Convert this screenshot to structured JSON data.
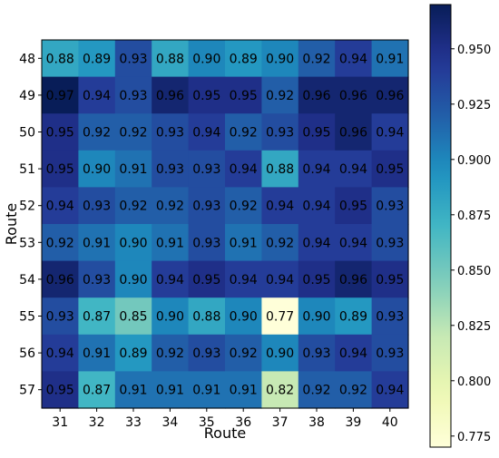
{
  "chart_data": {
    "type": "heatmap",
    "title": "",
    "xlabel": "Route",
    "ylabel": "Route",
    "x_categories": [
      "31",
      "32",
      "33",
      "34",
      "35",
      "36",
      "37",
      "38",
      "39",
      "40"
    ],
    "y_categories": [
      "48",
      "49",
      "50",
      "51",
      "52",
      "53",
      "54",
      "55",
      "56",
      "57"
    ],
    "values": [
      [
        0.88,
        0.89,
        0.93,
        0.88,
        0.9,
        0.89,
        0.9,
        0.92,
        0.94,
        0.91
      ],
      [
        0.97,
        0.94,
        0.93,
        0.96,
        0.95,
        0.95,
        0.92,
        0.96,
        0.96,
        0.96
      ],
      [
        0.95,
        0.92,
        0.92,
        0.93,
        0.94,
        0.92,
        0.93,
        0.95,
        0.96,
        0.94
      ],
      [
        0.95,
        0.9,
        0.91,
        0.93,
        0.93,
        0.94,
        0.88,
        0.94,
        0.94,
        0.95
      ],
      [
        0.94,
        0.93,
        0.92,
        0.92,
        0.93,
        0.92,
        0.94,
        0.94,
        0.95,
        0.93
      ],
      [
        0.92,
        0.91,
        0.9,
        0.91,
        0.93,
        0.91,
        0.92,
        0.94,
        0.94,
        0.93
      ],
      [
        0.96,
        0.93,
        0.9,
        0.94,
        0.95,
        0.94,
        0.94,
        0.95,
        0.96,
        0.95
      ],
      [
        0.93,
        0.87,
        0.85,
        0.9,
        0.88,
        0.9,
        0.77,
        0.9,
        0.89,
        0.93
      ],
      [
        0.94,
        0.91,
        0.89,
        0.92,
        0.93,
        0.92,
        0.9,
        0.93,
        0.94,
        0.93
      ],
      [
        0.95,
        0.87,
        0.91,
        0.91,
        0.91,
        0.91,
        0.82,
        0.92,
        0.92,
        0.94
      ]
    ],
    "value_labels": [
      [
        "0.88",
        "0.89",
        "0.93",
        "0.88",
        "0.90",
        "0.89",
        "0.90",
        "0.92",
        "0.94",
        "0.91"
      ],
      [
        "0.97",
        "0.94",
        "0.93",
        "0.96",
        "0.95",
        "0.95",
        "0.92",
        "0.96",
        "0.96",
        "0.96"
      ],
      [
        "0.95",
        "0.92",
        "0.92",
        "0.93",
        "0.94",
        "0.92",
        "0.93",
        "0.95",
        "0.96",
        "0.94"
      ],
      [
        "0.95",
        "0.90",
        "0.91",
        "0.93",
        "0.93",
        "0.94",
        "0.88",
        "0.94",
        "0.94",
        "0.95"
      ],
      [
        "0.94",
        "0.93",
        "0.92",
        "0.92",
        "0.93",
        "0.92",
        "0.94",
        "0.94",
        "0.95",
        "0.93"
      ],
      [
        "0.92",
        "0.91",
        "0.90",
        "0.91",
        "0.93",
        "0.91",
        "0.92",
        "0.94",
        "0.94",
        "0.93"
      ],
      [
        "0.96",
        "0.93",
        "0.90",
        "0.94",
        "0.95",
        "0.94",
        "0.94",
        "0.95",
        "0.96",
        "0.95"
      ],
      [
        "0.93",
        "0.87",
        "0.85",
        "0.90",
        "0.88",
        "0.90",
        "0.77",
        "0.90",
        "0.89",
        "0.93"
      ],
      [
        "0.94",
        "0.91",
        "0.89",
        "0.92",
        "0.93",
        "0.92",
        "0.90",
        "0.93",
        "0.94",
        "0.93"
      ],
      [
        "0.95",
        "0.87",
        "0.91",
        "0.91",
        "0.91",
        "0.91",
        "0.82",
        "0.92",
        "0.92",
        "0.94"
      ]
    ],
    "colormap": "YlGnBu",
    "color_range": [
      0.77,
      0.97
    ],
    "colorbar_ticks": [
      0.775,
      0.8,
      0.825,
      0.85,
      0.875,
      0.9,
      0.925,
      0.95
    ],
    "colorbar_tick_labels": [
      "0.775",
      "0.800",
      "0.825",
      "0.850",
      "0.875",
      "0.900",
      "0.925",
      "0.950"
    ],
    "colorbar_position": "right"
  }
}
